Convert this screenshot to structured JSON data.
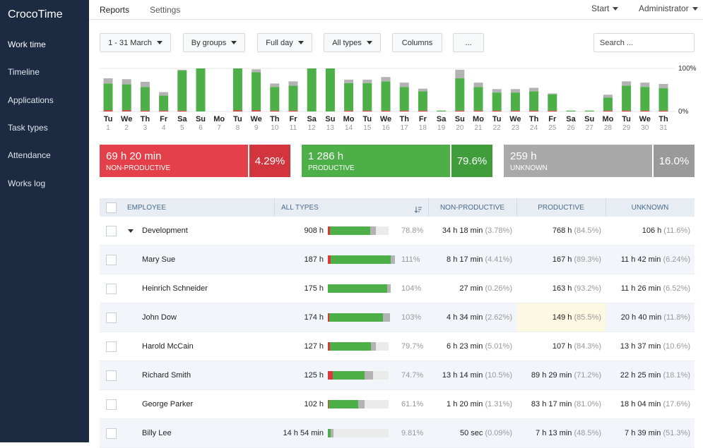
{
  "sidebar": {
    "brand": "CrocoTime",
    "items": [
      "Work time",
      "Timeline",
      "Applications",
      "Task types",
      "Attendance",
      "Works log"
    ]
  },
  "topbar": {
    "tabs": [
      "Reports",
      "Settings"
    ],
    "menus": [
      "Start",
      "Administrator"
    ]
  },
  "toolbar": {
    "filters": [
      "1 - 31 March",
      "By groups",
      "Full day",
      "All types"
    ],
    "buttons": [
      "Columns",
      "..."
    ],
    "search_placeholder": "Search ..."
  },
  "chart_data": {
    "type": "bar",
    "stacked": true,
    "categories": [
      "Tu",
      "We",
      "Th",
      "Fr",
      "Sa",
      "Su",
      "Mo",
      "Tu",
      "We",
      "Th",
      "Fr",
      "Sa",
      "Su",
      "Mo",
      "Tu",
      "We",
      "Th",
      "Fr",
      "Sa",
      "Su",
      "Mo",
      "Tu",
      "We",
      "Th",
      "Fr",
      "Sa",
      "Su",
      "Mo",
      "Tu",
      "We",
      "Th"
    ],
    "dates": [
      1,
      2,
      3,
      4,
      5,
      6,
      7,
      8,
      9,
      10,
      11,
      12,
      13,
      14,
      15,
      16,
      17,
      18,
      19,
      20,
      21,
      22,
      23,
      24,
      25,
      26,
      27,
      28,
      29,
      30,
      31
    ],
    "series": [
      {
        "color": "#d9363e",
        "values": [
          3,
          3,
          2,
          2,
          2,
          0,
          0,
          3,
          3,
          2,
          2,
          0,
          0,
          2,
          2,
          2,
          2,
          2,
          0,
          2,
          2,
          2,
          2,
          2,
          2,
          0,
          0,
          2,
          2,
          2,
          2
        ]
      },
      {
        "color": "#4caf47",
        "values": [
          62,
          60,
          55,
          35,
          93,
          100,
          0,
          97,
          88,
          55,
          58,
          100,
          100,
          64,
          64,
          68,
          55,
          45,
          2,
          75,
          55,
          42,
          42,
          45,
          38,
          2,
          2,
          30,
          58,
          55,
          52
        ]
      },
      {
        "color": "#b3b3b3",
        "values": [
          12,
          12,
          12,
          8,
          2,
          0,
          0,
          0,
          7,
          8,
          10,
          0,
          0,
          8,
          8,
          10,
          10,
          6,
          0,
          20,
          10,
          8,
          8,
          8,
          2,
          0,
          0,
          7,
          10,
          10,
          10
        ]
      }
    ],
    "ylim": [
      0,
      100
    ],
    "yticks": [
      {
        "value": 0,
        "label": "0%"
      },
      {
        "value": 100,
        "label": "100%"
      }
    ],
    "grid": true
  },
  "summary": [
    {
      "time": "69 h 20 min",
      "label": "NON-PRODUCTIVE",
      "share": "4.29%",
      "color": "#e3404a",
      "accent": "#d3353f"
    },
    {
      "time": "1 286 h",
      "label": "PRODUCTIVE",
      "share": "79.6%",
      "color": "#4caf47",
      "accent": "#3f9d3b"
    },
    {
      "time": "259 h",
      "label": "UNKNOWN",
      "share": "16.0%",
      "color": "#a9a9a9",
      "accent": "#9a9a9a"
    }
  ],
  "table": {
    "headers": [
      "EMPLOYEE",
      "ALL TYPES",
      "NON-PRODUCTIVE",
      "PRODUCTIVE",
      "UNKNOWN"
    ],
    "bar_colors": [
      "#d9363e",
      "#4caf47",
      "#b3b3b3"
    ],
    "rows": [
      {
        "name": "Development",
        "group": true,
        "total": "908 h",
        "total_share": "78.8%",
        "non_productive": "34 h 18 min",
        "non_productive_share": "(3.78%)",
        "productive": "768 h",
        "productive_share": "(84.5%)",
        "unknown": "106 h",
        "unknown_share": "(11.6%)",
        "bar": [
          3.78,
          84.5,
          11.6
        ],
        "bar_total": 78.8
      },
      {
        "name": "Mary Sue",
        "total": "187 h",
        "total_share": "111%",
        "non_productive": "8 h 17 min",
        "non_productive_share": "(4.41%)",
        "productive": "167 h",
        "productive_share": "(89.3%)",
        "unknown": "11 h 42 min",
        "unknown_share": "(6.24%)",
        "bar": [
          4.41,
          89.3,
          6.24
        ],
        "bar_total": 111
      },
      {
        "name": "Heinrich Schneider",
        "total": "175 h",
        "total_share": "104%",
        "non_productive": "27 min",
        "non_productive_share": "(0.26%)",
        "productive": "163 h",
        "productive_share": "(93.2%)",
        "unknown": "11 h 26 min",
        "unknown_share": "(6.52%)",
        "bar": [
          0.26,
          93.2,
          6.52
        ],
        "bar_total": 104
      },
      {
        "name": "John Dow",
        "highlight": "productive",
        "total": "174 h",
        "total_share": "103%",
        "non_productive": "4 h 34 min",
        "non_productive_share": "(2.62%)",
        "productive": "149 h",
        "productive_share": "(85.5%)",
        "unknown": "20 h 40 min",
        "unknown_share": "(11.8%)",
        "bar": [
          2.62,
          85.5,
          11.8
        ],
        "bar_total": 103
      },
      {
        "name": "Harold McCain",
        "total": "127 h",
        "total_share": "79.7%",
        "non_productive": "6 h 23 min",
        "non_productive_share": "(5.01%)",
        "productive": "107 h",
        "productive_share": "(84.3%)",
        "unknown": "13 h 37 min",
        "unknown_share": "(10.6%)",
        "bar": [
          5.01,
          84.3,
          10.6
        ],
        "bar_total": 79.7
      },
      {
        "name": "Richard Smith",
        "total": "125 h",
        "total_share": "74.7%",
        "non_productive": "13 h 14 min",
        "non_productive_share": "(10.5%)",
        "productive": "89 h 29 min",
        "productive_share": "(71.2%)",
        "unknown": "22 h 25 min",
        "unknown_share": "(18.1%)",
        "bar": [
          10.5,
          71.2,
          18.1
        ],
        "bar_total": 74.7
      },
      {
        "name": "George Parker",
        "total": "102 h",
        "total_share": "61.1%",
        "non_productive": "1 h 20 min",
        "non_productive_share": "(1.31%)",
        "productive": "83 h 17 min",
        "productive_share": "(81.0%)",
        "unknown": "18 h 04 min",
        "unknown_share": "(17.6%)",
        "bar": [
          1.31,
          81.0,
          17.6
        ],
        "bar_total": 61.1
      },
      {
        "name": "Billy Lee",
        "total": "14 h 54 min",
        "total_share": "9.81%",
        "non_productive": "50 sec",
        "non_productive_share": "(0.09%)",
        "productive": "7 h 13 min",
        "productive_share": "(48.5%)",
        "unknown": "7 h 39 min",
        "unknown_share": "(51.3%)",
        "bar": [
          0.09,
          48.5,
          51.3
        ],
        "bar_total": 9.81
      }
    ]
  }
}
